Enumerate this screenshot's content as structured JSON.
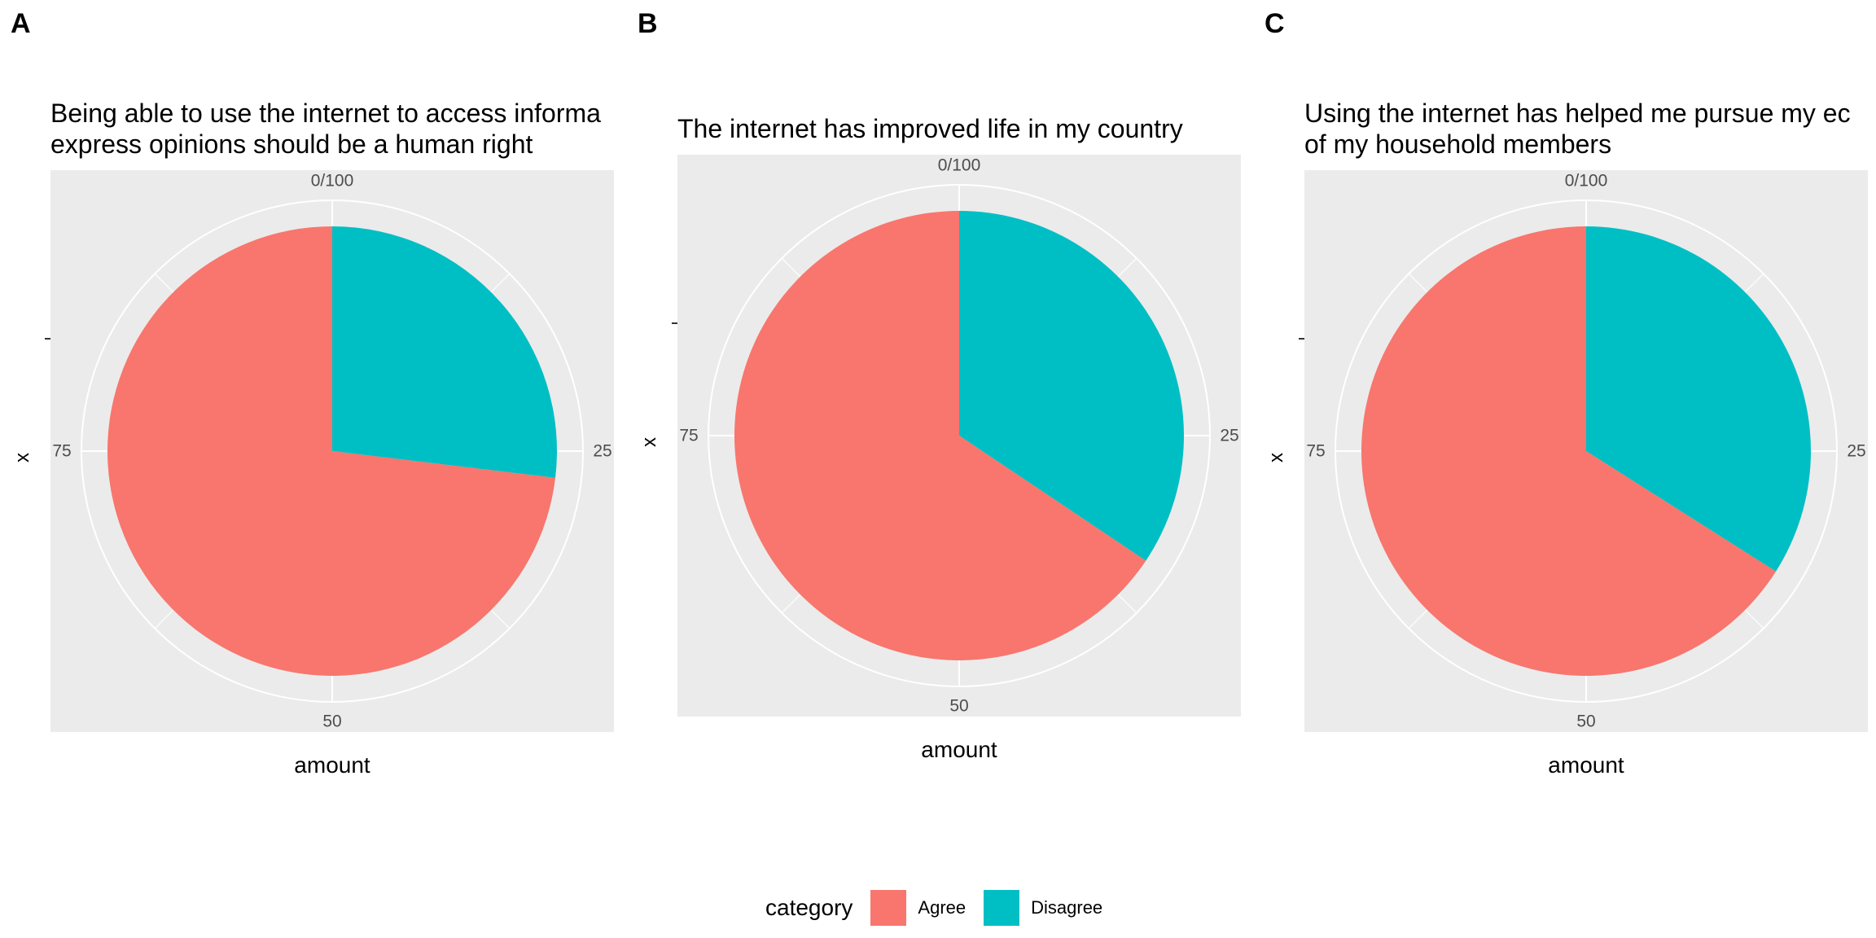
{
  "legend": {
    "title": "category",
    "items": [
      {
        "label": "Agree",
        "color": "#F8766D"
      },
      {
        "label": "Disagree",
        "color": "#00BFC4"
      }
    ]
  },
  "chart_data": [
    {
      "type": "pie",
      "panel_label": "A",
      "title_lines": [
        "Being able to use the internet to access informa",
        "express opinions should be a human right"
      ],
      "xlabel": "amount",
      "ylabel": "x",
      "theta_ticks": [
        "0/100",
        "25",
        "50",
        "75"
      ],
      "theta_range": [
        0,
        100
      ],
      "grid": true,
      "categories": [
        "Disagree",
        "Agree"
      ],
      "values": [
        26.9,
        73.1
      ],
      "colors": [
        "#00BFC4",
        "#F8766D"
      ]
    },
    {
      "type": "pie",
      "panel_label": "B",
      "title_lines": [
        "The internet has improved life in my country"
      ],
      "xlabel": "amount",
      "ylabel": "x",
      "theta_ticks": [
        "0/100",
        "25",
        "50",
        "75"
      ],
      "theta_range": [
        0,
        100
      ],
      "grid": true,
      "categories": [
        "Disagree",
        "Agree"
      ],
      "values": [
        34.4,
        65.6
      ],
      "colors": [
        "#00BFC4",
        "#F8766D"
      ]
    },
    {
      "type": "pie",
      "panel_label": "C",
      "title_lines": [
        "Using the internet has helped me pursue my ec",
        "of my household members"
      ],
      "xlabel": "amount",
      "ylabel": "x",
      "theta_ticks": [
        "0/100",
        "25",
        "50",
        "75"
      ],
      "theta_range": [
        0,
        100
      ],
      "grid": true,
      "categories": [
        "Disagree",
        "Agree"
      ],
      "values": [
        34.0,
        66.0
      ],
      "colors": [
        "#00BFC4",
        "#F8766D"
      ]
    }
  ]
}
